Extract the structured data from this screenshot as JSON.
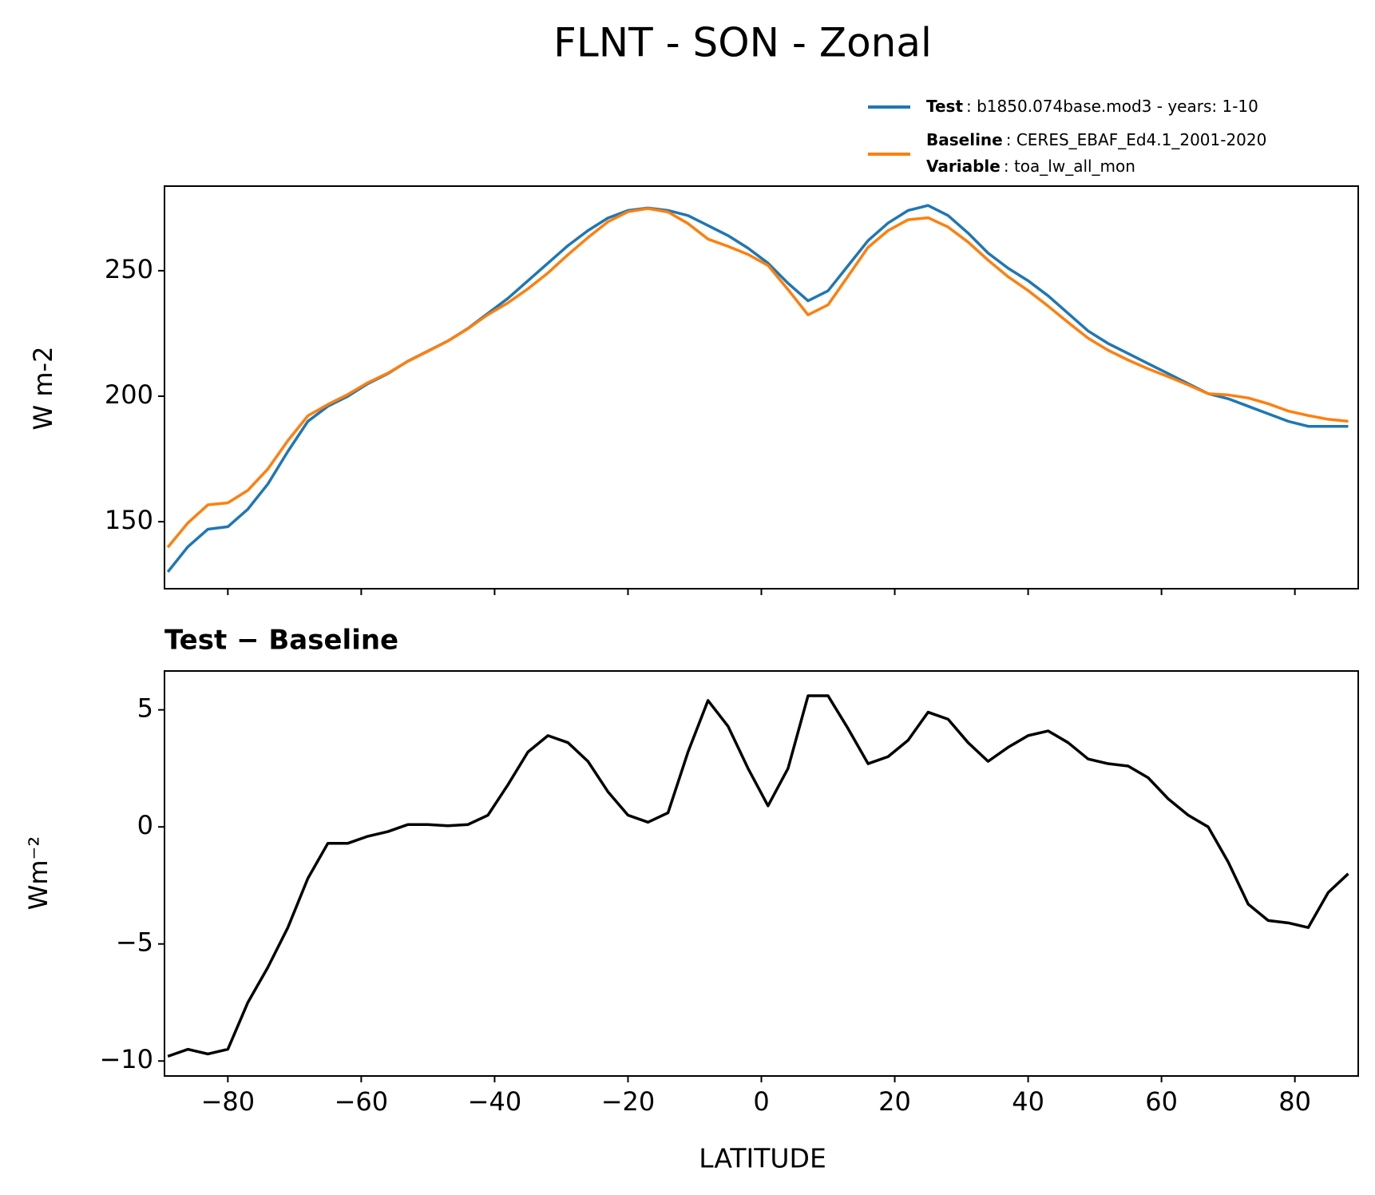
{
  "chart_data": [
    {
      "type": "line",
      "title": "FLNT - SON - Zonal",
      "ylabel": "W m-2",
      "x": [
        -89,
        -86,
        -83,
        -80,
        -77,
        -74,
        -71,
        -68,
        -65,
        -62,
        -59,
        -56,
        -53,
        -50,
        -47,
        -44,
        -41,
        -38,
        -35,
        -32,
        -29,
        -26,
        -23,
        -20,
        -17,
        -14,
        -11,
        -8,
        -5,
        -2,
        1,
        4,
        7,
        10,
        13,
        16,
        19,
        22,
        25,
        28,
        31,
        34,
        37,
        40,
        43,
        46,
        49,
        52,
        55,
        58,
        61,
        64,
        67,
        70,
        73,
        76,
        79,
        82,
        85,
        88
      ],
      "series": [
        {
          "name": "Test",
          "description": ": b1850.074base.mod3 - years: 1-10",
          "color": "#1f77b4",
          "values": [
            130,
            140,
            147,
            148,
            155,
            165,
            178,
            190,
            196,
            200,
            205,
            209,
            214,
            218,
            222,
            227,
            233,
            239,
            246,
            253,
            260,
            266,
            271,
            274,
            275,
            274,
            272,
            268,
            264,
            259,
            253,
            245,
            238,
            242,
            252,
            262,
            269,
            274,
            276,
            272,
            265,
            257,
            251,
            246,
            240,
            233,
            226,
            221,
            217,
            213,
            209,
            205,
            201,
            199,
            196,
            193,
            190,
            188,
            188,
            188
          ]
        },
        {
          "name": "Baseline",
          "description": ": CERES_EBAF_Ed4.1_2001-2020",
          "color": "#ff7f0e",
          "values": [
            139.8,
            149.5,
            156.7,
            157.5,
            162.5,
            171,
            182.3,
            192.2,
            196.7,
            200.7,
            205.4,
            209.2,
            213.9,
            217.9,
            222,
            226.9,
            232.5,
            237.2,
            242.8,
            249.1,
            256.4,
            263.2,
            269.5,
            273.5,
            274.8,
            273.4,
            268.8,
            262.6,
            259.7,
            256.5,
            252.1,
            242.5,
            232.4,
            236.4,
            247.8,
            259.3,
            266,
            270.3,
            271.1,
            267.4,
            261.4,
            254.2,
            247.6,
            242.1,
            235.9,
            229.4,
            223.1,
            218.3,
            214.4,
            210.9,
            207.8,
            204.5,
            201,
            200.5,
            199.3,
            197,
            194.1,
            192.3,
            190.8,
            190
          ]
        }
      ],
      "variable_label": "Variable",
      "variable": ": toa_lw_all_mon",
      "xlim": [
        -89.5,
        89.5
      ],
      "xticks": [
        -80,
        -60,
        -40,
        -20,
        0,
        20,
        40,
        60,
        80
      ],
      "ylim": [
        123.3,
        283.7
      ],
      "yticks": [
        150,
        200,
        250
      ]
    },
    {
      "type": "line",
      "title": "Test − Baseline",
      "ylabel": "Wm⁻²",
      "xlabel": "LATITUDE",
      "color": "#000000",
      "x": [
        -89,
        -86,
        -83,
        -80,
        -77,
        -74,
        -71,
        -68,
        -65,
        -62,
        -59,
        -56,
        -53,
        -50,
        -47,
        -44,
        -41,
        -38,
        -35,
        -32,
        -29,
        -26,
        -23,
        -20,
        -17,
        -14,
        -11,
        -8,
        -5,
        -2,
        1,
        4,
        7,
        10,
        13,
        16,
        19,
        22,
        25,
        28,
        31,
        34,
        37,
        40,
        43,
        46,
        49,
        52,
        55,
        58,
        61,
        64,
        67,
        70,
        73,
        76,
        79,
        82,
        85,
        88
      ],
      "values": [
        -9.8,
        -9.5,
        -9.7,
        -9.5,
        -7.5,
        -6,
        -4.3,
        -2.2,
        -0.7,
        -0.7,
        -0.4,
        -0.2,
        0.1,
        0.1,
        0.05,
        0.1,
        0.5,
        1.8,
        3.2,
        3.9,
        3.6,
        2.8,
        1.5,
        0.5,
        0.2,
        0.6,
        3.2,
        5.4,
        4.3,
        2.5,
        0.9,
        2.5,
        5.6,
        5.6,
        4.2,
        2.7,
        3.0,
        3.7,
        4.9,
        4.6,
        3.6,
        2.8,
        3.4,
        3.9,
        4.1,
        3.6,
        2.9,
        2.7,
        2.6,
        2.1,
        1.2,
        0.5,
        0.0,
        -1.5,
        -3.3,
        -4.0,
        -4.1,
        -4.3,
        -2.8,
        -2.0
      ],
      "xlim": [
        -89.5,
        89.5
      ],
      "xticks": [
        {
          "value": -80,
          "label": "−80"
        },
        {
          "value": -60,
          "label": "−60"
        },
        {
          "value": -40,
          "label": "−40"
        },
        {
          "value": -20,
          "label": "−20"
        },
        0,
        20,
        40,
        60,
        80
      ],
      "ylim": [
        -10.64,
        6.66
      ],
      "yticks": [
        {
          "value": -10,
          "label": "−10"
        },
        {
          "value": -5,
          "label": "−5"
        },
        0,
        5
      ]
    }
  ]
}
